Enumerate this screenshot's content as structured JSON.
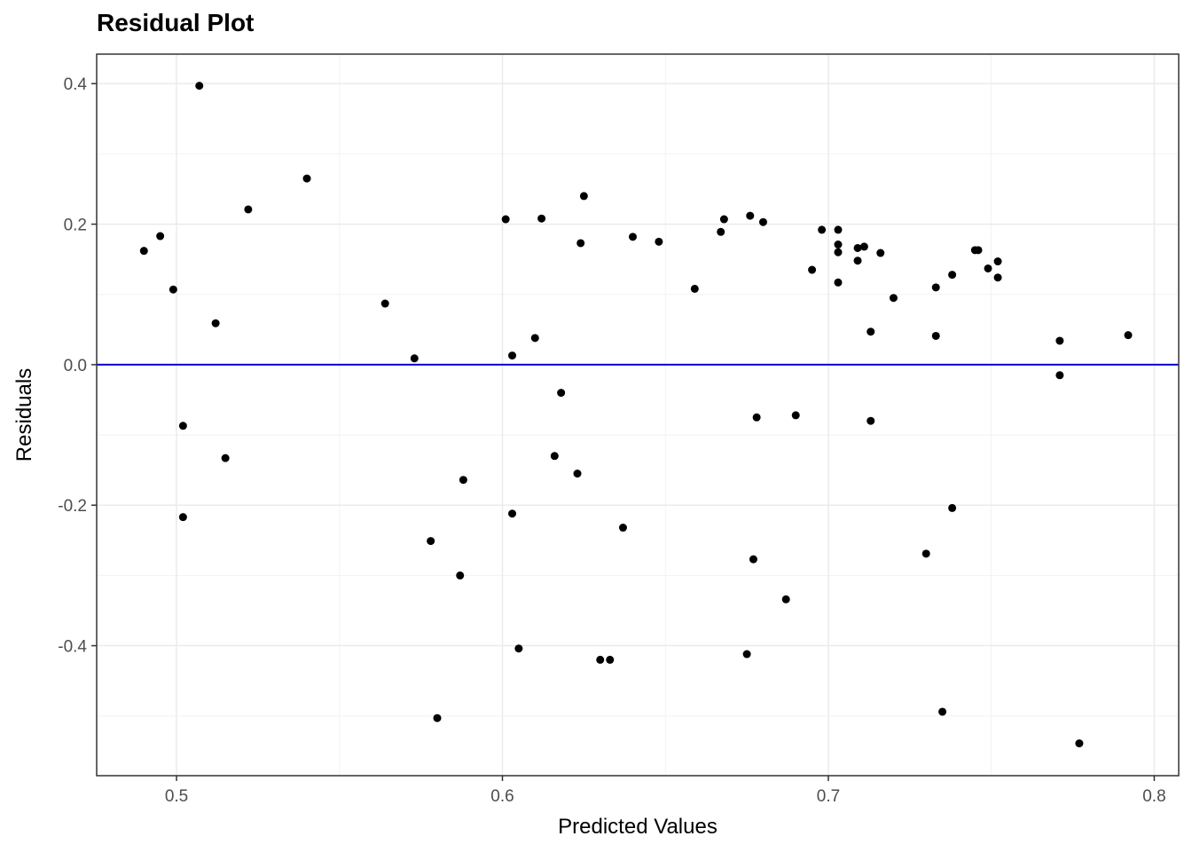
{
  "chart_data": {
    "type": "scatter",
    "title": "Residual Plot",
    "xlabel": "Predicted Values",
    "ylabel": "Residuals",
    "xlim": [
      0.4755,
      0.8075
    ],
    "ylim": [
      -0.585,
      0.442
    ],
    "x_ticks": [
      0.5,
      0.6,
      0.7,
      0.8
    ],
    "x_tick_labels": [
      "0.5",
      "0.6",
      "0.7",
      "0.8"
    ],
    "y_ticks": [
      -0.4,
      -0.2,
      0.0,
      0.2,
      0.4
    ],
    "y_tick_labels": [
      "-0.4",
      "-0.2",
      "0.0",
      "0.2",
      "0.4"
    ],
    "grid": true,
    "reference_line": {
      "y": 0,
      "color": "#0000cc"
    },
    "point_color": "#000000",
    "points": [
      {
        "x": 0.49,
        "y": 0.162
      },
      {
        "x": 0.495,
        "y": 0.183
      },
      {
        "x": 0.499,
        "y": 0.107
      },
      {
        "x": 0.502,
        "y": -0.087
      },
      {
        "x": 0.502,
        "y": -0.217
      },
      {
        "x": 0.507,
        "y": 0.397
      },
      {
        "x": 0.512,
        "y": 0.059
      },
      {
        "x": 0.515,
        "y": -0.133
      },
      {
        "x": 0.522,
        "y": 0.221
      },
      {
        "x": 0.54,
        "y": 0.265
      },
      {
        "x": 0.564,
        "y": 0.087
      },
      {
        "x": 0.573,
        "y": 0.009
      },
      {
        "x": 0.578,
        "y": -0.251
      },
      {
        "x": 0.58,
        "y": -0.503
      },
      {
        "x": 0.587,
        "y": -0.3
      },
      {
        "x": 0.588,
        "y": -0.164
      },
      {
        "x": 0.601,
        "y": 0.207
      },
      {
        "x": 0.603,
        "y": 0.013
      },
      {
        "x": 0.603,
        "y": -0.212
      },
      {
        "x": 0.605,
        "y": -0.404
      },
      {
        "x": 0.61,
        "y": 0.038
      },
      {
        "x": 0.612,
        "y": 0.208
      },
      {
        "x": 0.616,
        "y": -0.13
      },
      {
        "x": 0.618,
        "y": -0.04
      },
      {
        "x": 0.623,
        "y": -0.155
      },
      {
        "x": 0.624,
        "y": 0.173
      },
      {
        "x": 0.625,
        "y": 0.24
      },
      {
        "x": 0.63,
        "y": -0.42
      },
      {
        "x": 0.633,
        "y": -0.42
      },
      {
        "x": 0.637,
        "y": -0.232
      },
      {
        "x": 0.64,
        "y": 0.182
      },
      {
        "x": 0.648,
        "y": 0.175
      },
      {
        "x": 0.659,
        "y": 0.108
      },
      {
        "x": 0.667,
        "y": 0.189
      },
      {
        "x": 0.668,
        "y": 0.207
      },
      {
        "x": 0.675,
        "y": -0.412
      },
      {
        "x": 0.676,
        "y": 0.212
      },
      {
        "x": 0.677,
        "y": -0.277
      },
      {
        "x": 0.678,
        "y": -0.075
      },
      {
        "x": 0.68,
        "y": 0.203
      },
      {
        "x": 0.687,
        "y": -0.334
      },
      {
        "x": 0.69,
        "y": -0.072
      },
      {
        "x": 0.695,
        "y": 0.135
      },
      {
        "x": 0.698,
        "y": 0.192
      },
      {
        "x": 0.703,
        "y": 0.192
      },
      {
        "x": 0.703,
        "y": 0.171
      },
      {
        "x": 0.703,
        "y": 0.16
      },
      {
        "x": 0.703,
        "y": 0.117
      },
      {
        "x": 0.709,
        "y": 0.166
      },
      {
        "x": 0.709,
        "y": 0.148
      },
      {
        "x": 0.711,
        "y": 0.168
      },
      {
        "x": 0.713,
        "y": 0.047
      },
      {
        "x": 0.713,
        "y": -0.08
      },
      {
        "x": 0.716,
        "y": 0.159
      },
      {
        "x": 0.72,
        "y": 0.095
      },
      {
        "x": 0.73,
        "y": -0.269
      },
      {
        "x": 0.733,
        "y": 0.11
      },
      {
        "x": 0.733,
        "y": 0.041
      },
      {
        "x": 0.735,
        "y": -0.494
      },
      {
        "x": 0.738,
        "y": 0.128
      },
      {
        "x": 0.738,
        "y": -0.204
      },
      {
        "x": 0.745,
        "y": 0.163
      },
      {
        "x": 0.746,
        "y": 0.163
      },
      {
        "x": 0.749,
        "y": 0.137
      },
      {
        "x": 0.752,
        "y": 0.147
      },
      {
        "x": 0.752,
        "y": 0.124
      },
      {
        "x": 0.771,
        "y": 0.034
      },
      {
        "x": 0.771,
        "y": -0.015
      },
      {
        "x": 0.777,
        "y": -0.539
      },
      {
        "x": 0.792,
        "y": 0.042
      }
    ]
  }
}
